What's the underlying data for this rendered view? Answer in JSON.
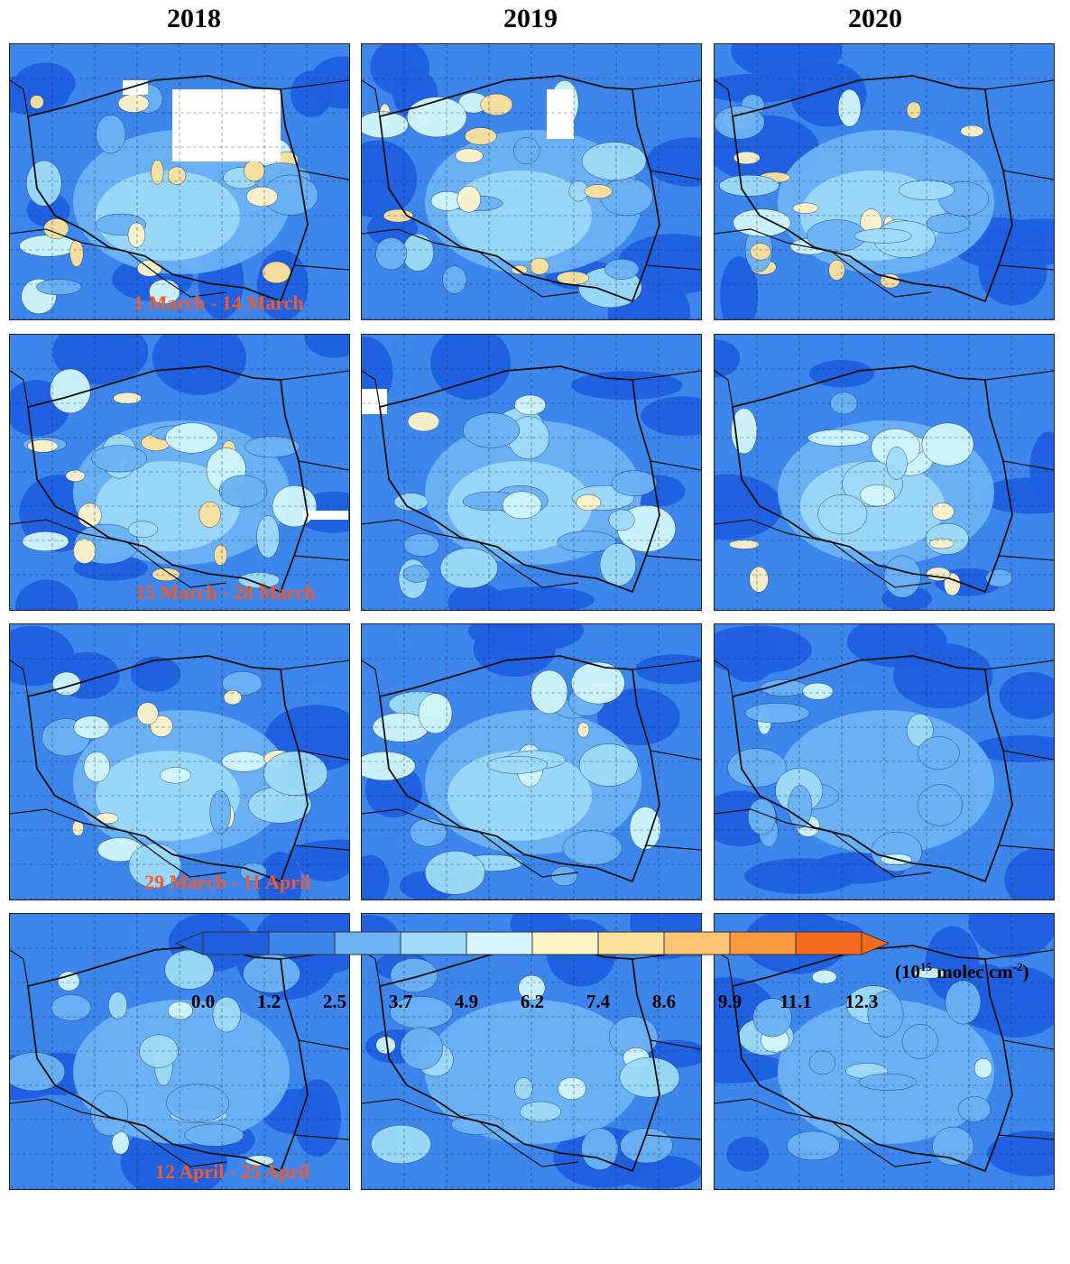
{
  "years": [
    "2018",
    "2019",
    "2020"
  ],
  "periods": [
    "1 March - 14 March",
    "15 March - 28 March",
    "29 March - 11 April",
    "12 April - 25 April"
  ],
  "colorbar": {
    "ticks": [
      "0.0",
      "1.2",
      "2.5",
      "3.7",
      "4.9",
      "6.2",
      "7.4",
      "8.6",
      "9.9",
      "11.1",
      "12.3"
    ],
    "colors": [
      "#1f5fe0",
      "#3d86ec",
      "#6bb3f4",
      "#9edcf8",
      "#d2f6fb",
      "#fdf4c8",
      "#fde29a",
      "#fcc372",
      "#fa9a40",
      "#f56a1c"
    ],
    "units_base": "(10",
    "units_exp": "15",
    "units_mid": " molec cm",
    "units_exp2": "-2",
    "units_end": ")"
  },
  "map_colors": {
    "deep": "#1f5fe0",
    "mid": "#3d86ec",
    "light": "#6bb3f4",
    "pale": "#9edcf8",
    "paler": "#d2f6fb",
    "cream": "#fdf4c8",
    "yellow": "#fde29a",
    "orange": "#fcc372",
    "border": "#111111",
    "nodata": "#ffffff"
  },
  "panels": [
    {
      "year": "2018",
      "period": "1 March - 14 March",
      "level": "high",
      "white_patch": true
    },
    {
      "year": "2019",
      "period": "1 March - 14 March",
      "level": "high",
      "white_patch": true
    },
    {
      "year": "2020",
      "period": "1 March - 14 March",
      "level": "high",
      "white_patch": false
    },
    {
      "year": "2018",
      "period": "15 March - 28 March",
      "level": "high",
      "white_patch": true
    },
    {
      "year": "2019",
      "period": "15 March - 28 March",
      "level": "medium",
      "white_patch": true
    },
    {
      "year": "2020",
      "period": "15 March - 28 March",
      "level": "medium",
      "white_patch": false
    },
    {
      "year": "2018",
      "period": "29 March - 11 April",
      "level": "medium",
      "white_patch": false
    },
    {
      "year": "2019",
      "period": "29 March - 11 April",
      "level": "medium",
      "white_patch": false
    },
    {
      "year": "2020",
      "period": "29 March - 11 April",
      "level": "low",
      "white_patch": false
    },
    {
      "year": "2018",
      "period": "12 April - 25 April",
      "level": "low",
      "white_patch": false
    },
    {
      "year": "2019",
      "period": "12 April - 25 April",
      "level": "low",
      "white_patch": false
    },
    {
      "year": "2020",
      "period": "12 April - 25 April",
      "level": "low",
      "white_patch": false
    }
  ]
}
